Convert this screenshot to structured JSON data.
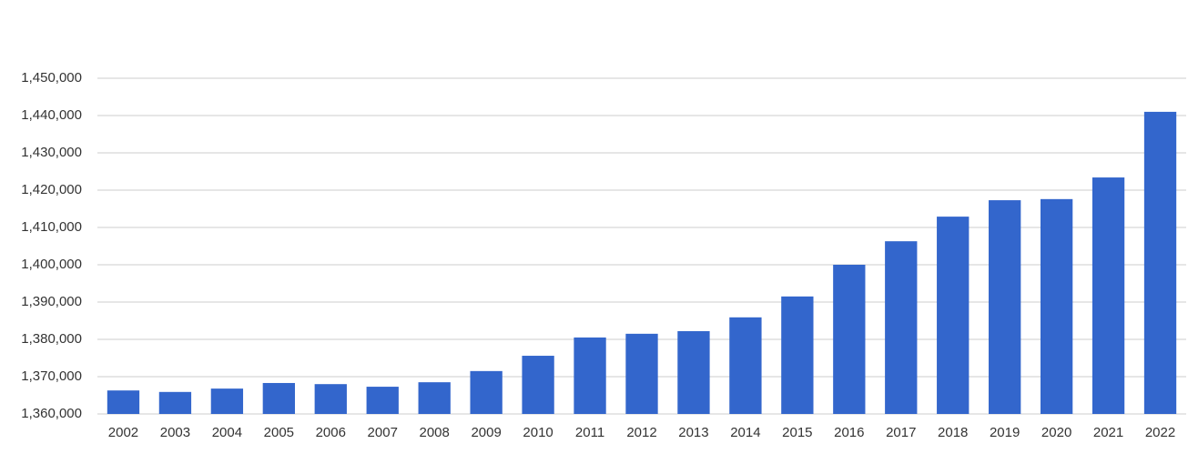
{
  "chart_data": {
    "type": "bar",
    "categories": [
      "2002",
      "2003",
      "2004",
      "2005",
      "2006",
      "2007",
      "2008",
      "2009",
      "2010",
      "2011",
      "2012",
      "2013",
      "2014",
      "2015",
      "2016",
      "2017",
      "2018",
      "2019",
      "2020",
      "2021",
      "2022"
    ],
    "values": [
      1366300,
      1365900,
      1366800,
      1368300,
      1368000,
      1367300,
      1368500,
      1371500,
      1375600,
      1380500,
      1381500,
      1382200,
      1385900,
      1391500,
      1400000,
      1406300,
      1412900,
      1417300,
      1417600,
      1423400,
      1441000
    ],
    "color": "#3366cc",
    "ylim": [
      1360000,
      1450000
    ],
    "yticks": [
      {
        "value": 1360000,
        "label": "1,360,000"
      },
      {
        "value": 1370000,
        "label": "1,370,000"
      },
      {
        "value": 1380000,
        "label": "1,380,000"
      },
      {
        "value": 1390000,
        "label": "1,390,000"
      },
      {
        "value": 1400000,
        "label": "1,400,000"
      },
      {
        "value": 1410000,
        "label": "1,410,000"
      },
      {
        "value": 1420000,
        "label": "1,420,000"
      },
      {
        "value": 1430000,
        "label": "1,430,000"
      },
      {
        "value": 1440000,
        "label": "1,440,000"
      },
      {
        "value": 1450000,
        "label": "1,450,000"
      }
    ],
    "grid": true
  }
}
